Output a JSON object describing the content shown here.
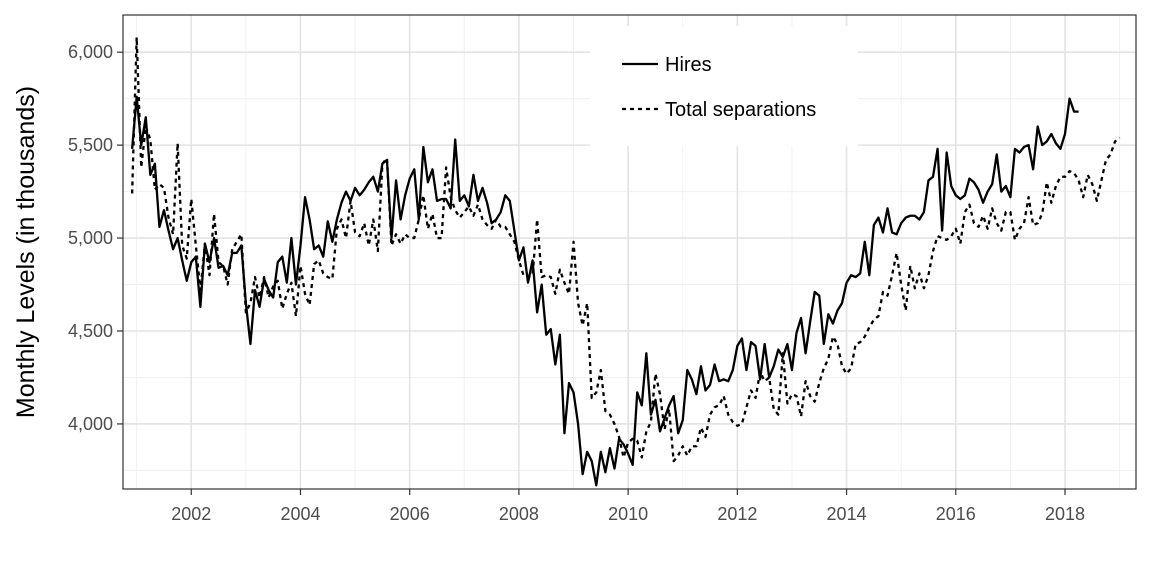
{
  "chart_data": {
    "type": "line",
    "title": "",
    "xlabel": "",
    "ylabel": "Monthly Levels (in thousands)",
    "xlim": [
      2000.75,
      2019.3
    ],
    "ylim": [
      3650,
      6200
    ],
    "xticks": [
      2002,
      2004,
      2006,
      2008,
      2010,
      2012,
      2014,
      2016,
      2018
    ],
    "xtick_labels": [
      "2002",
      "2004",
      "2006",
      "2008",
      "2010",
      "2012",
      "2014",
      "2016",
      "2018"
    ],
    "yticks": [
      4000,
      4500,
      5000,
      5500,
      6000
    ],
    "ytick_labels": [
      "4,000",
      "4,500",
      "5,000",
      "5,500",
      "6,000"
    ],
    "grid": true,
    "legend_position": "top-center",
    "x_start": 2000.917,
    "x_step": 0.08333,
    "series": [
      {
        "name": "Hires",
        "style": "solid",
        "color": "#000000",
        "values": [
          5480,
          5760,
          5500,
          5650,
          5340,
          5400,
          5060,
          5150,
          5040,
          4940,
          5000,
          4880,
          4770,
          4870,
          4900,
          4630,
          4970,
          4870,
          5000,
          4840,
          4850,
          4800,
          4920,
          4920,
          4960,
          4650,
          4430,
          4720,
          4630,
          4780,
          4720,
          4680,
          4870,
          4900,
          4760,
          5000,
          4750,
          4960,
          5220,
          5100,
          4940,
          4960,
          4900,
          5090,
          4980,
          5100,
          5190,
          5250,
          5200,
          5270,
          5230,
          5260,
          5300,
          5330,
          5250,
          5400,
          5420,
          5000,
          5310,
          5100,
          5230,
          5320,
          5370,
          5100,
          5490,
          5300,
          5370,
          5200,
          5210,
          5210,
          5160,
          5530,
          5200,
          5230,
          5170,
          5340,
          5200,
          5270,
          5190,
          5080,
          5100,
          5140,
          5230,
          5200,
          5040,
          4880,
          4950,
          4760,
          4880,
          4600,
          4750,
          4480,
          4510,
          4320,
          4480,
          3950,
          4220,
          4170,
          4000,
          3730,
          3850,
          3800,
          3670,
          3850,
          3740,
          3870,
          3760,
          3920,
          3890,
          3840,
          3780,
          4170,
          4100,
          4380,
          4050,
          4130,
          3960,
          4030,
          4100,
          4150,
          3950,
          4020,
          4290,
          4240,
          4160,
          4310,
          4180,
          4210,
          4320,
          4230,
          4240,
          4230,
          4290,
          4420,
          4460,
          4290,
          4440,
          4420,
          4240,
          4430,
          4250,
          4310,
          4400,
          4360,
          4430,
          4290,
          4490,
          4570,
          4380,
          4550,
          4710,
          4690,
          4430,
          4590,
          4540,
          4610,
          4650,
          4760,
          4800,
          4790,
          4810,
          4980,
          4800,
          5070,
          5110,
          5030,
          5160,
          5030,
          5020,
          5080,
          5110,
          5120,
          5120,
          5100,
          5140,
          5310,
          5330,
          5480,
          5040,
          5460,
          5280,
          5230,
          5210,
          5230,
          5320,
          5300,
          5260,
          5190,
          5250,
          5290,
          5450,
          5250,
          5280,
          5220,
          5480,
          5460,
          5490,
          5500,
          5370,
          5600,
          5500,
          5520,
          5560,
          5510,
          5480,
          5560,
          5750,
          5680,
          5680
        ]
      },
      {
        "name": "Total separations",
        "style": "dashed",
        "color": "#000000",
        "values": [
          5240,
          6080,
          5380,
          5600,
          5530,
          5260,
          5290,
          5270,
          5110,
          5020,
          5510,
          4960,
          4890,
          5210,
          4960,
          4720,
          4970,
          4800,
          5130,
          4870,
          4850,
          4750,
          4940,
          4980,
          5020,
          4600,
          4650,
          4790,
          4680,
          4790,
          4680,
          4740,
          4770,
          4620,
          4700,
          4760,
          4580,
          4850,
          4700,
          4640,
          4860,
          4880,
          4810,
          4790,
          4780,
          5050,
          5100,
          5000,
          5200,
          5030,
          5010,
          5080,
          4960,
          5100,
          4930,
          5400,
          5430,
          4960,
          5020,
          4970,
          5020,
          5000,
          5000,
          5100,
          5230,
          5050,
          5130,
          5000,
          5000,
          5380,
          5220,
          5150,
          5110,
          5140,
          5170,
          5120,
          5180,
          5100,
          5070,
          5050,
          5100,
          5060,
          5060,
          5020,
          4980,
          4880,
          4800,
          4790,
          4800,
          5100,
          4790,
          4800,
          4790,
          4700,
          4830,
          4760,
          4700,
          4980,
          4650,
          4530,
          4650,
          4140,
          4170,
          4290,
          4070,
          4050,
          4000,
          3930,
          3820,
          3900,
          3920,
          3910,
          3820,
          3960,
          4010,
          4270,
          4160,
          3970,
          4080,
          3800,
          3830,
          3880,
          3830,
          3880,
          3880,
          3980,
          3930,
          4050,
          4090,
          4100,
          4150,
          4050,
          4010,
          3990,
          4000,
          4090,
          4180,
          4140,
          4280,
          4230,
          4250,
          4080,
          4050,
          4380,
          4110,
          4160,
          4150,
          4040,
          4230,
          4150,
          4120,
          4220,
          4300,
          4350,
          4470,
          4430,
          4310,
          4270,
          4300,
          4430,
          4440,
          4470,
          4520,
          4560,
          4580,
          4710,
          4690,
          4800,
          4920,
          4750,
          4610,
          4850,
          4730,
          4810,
          4730,
          4800,
          4930,
          5010,
          5000,
          4990,
          5010,
          5050,
          4970,
          5140,
          5180,
          5080,
          5060,
          5120,
          5050,
          5160,
          5080,
          5040,
          5140,
          5140,
          4990,
          5050,
          5080,
          5220,
          5070,
          5080,
          5130,
          5300,
          5190,
          5280,
          5330,
          5330,
          5360,
          5350,
          5310,
          5220,
          5340,
          5290,
          5200,
          5310,
          5420,
          5450,
          5520,
          5540
        ]
      }
    ]
  }
}
